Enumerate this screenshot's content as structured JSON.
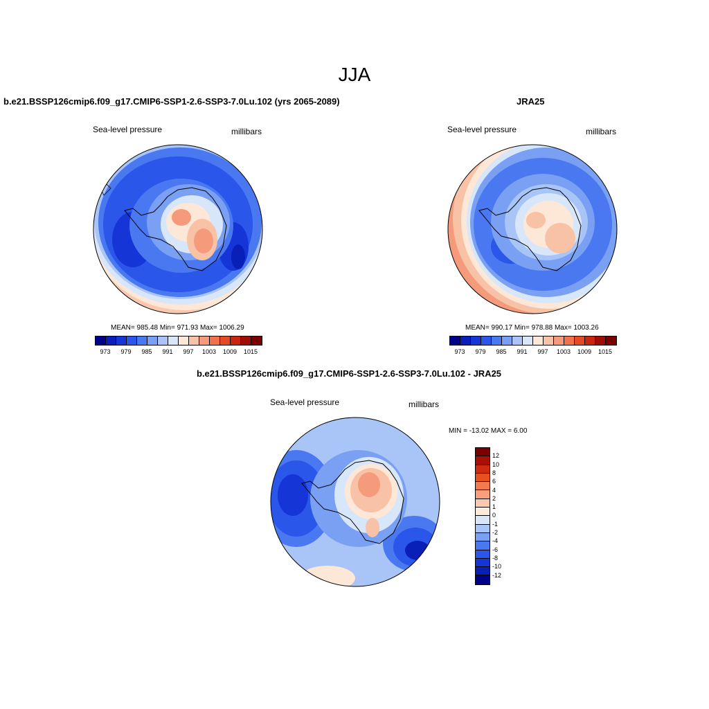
{
  "title": "JJA",
  "panels": {
    "model": {
      "title": "b.e21.BSSP126cmip6.f09_g17.CMIP6-SSP1-2.6-SSP3-7.0Lu.102 (yrs 2065-2089)",
      "field_label": "Sea-level pressure",
      "units": "millibars",
      "stats": "MEAN= 985.48  Min= 971.93  Max= 1006.29"
    },
    "obs": {
      "title": "JRA25",
      "field_label": "Sea-level pressure",
      "units": "millibars",
      "stats": "MEAN= 990.17  Min= 978.88  Max= 1003.26"
    },
    "diff": {
      "title": "b.e21.BSSP126cmip6.f09_g17.CMIP6-SSP1-2.6-SSP3-7.0Lu.102 - JRA25",
      "field_label": "Sea-level pressure",
      "units": "millibars",
      "stats": "MIN = -13.02 MAX =   6.00"
    }
  },
  "colorbar_main": {
    "colors": [
      "#00008b",
      "#0a1fb8",
      "#1535d6",
      "#2a56ea",
      "#4a78f0",
      "#7aa0f4",
      "#a9c4f7",
      "#d8e6fa",
      "#fde8d8",
      "#f8c2a6",
      "#f59a7a",
      "#f1714d",
      "#e64a24",
      "#c8260e",
      "#a00d05",
      "#7a0000"
    ],
    "tick_labels": [
      "973",
      "979",
      "985",
      "991",
      "997",
      "1003",
      "1009",
      "1015"
    ]
  },
  "colorbar_diff": {
    "colors": [
      "#7a0000",
      "#a80f05",
      "#cf2b0f",
      "#e8501f",
      "#f37a4e",
      "#f8a07c",
      "#fbc8ae",
      "#fdebd9",
      "#d8e6fa",
      "#a9c4f7",
      "#7aa0f4",
      "#4a78f0",
      "#2a56ea",
      "#1535d6",
      "#0a1fb8",
      "#00008b"
    ],
    "tick_labels": [
      "12",
      "10",
      "8",
      "6",
      "4",
      "2",
      "1",
      "0",
      "-1",
      "-2",
      "-4",
      "-6",
      "-8",
      "-10",
      "-12"
    ]
  }
}
